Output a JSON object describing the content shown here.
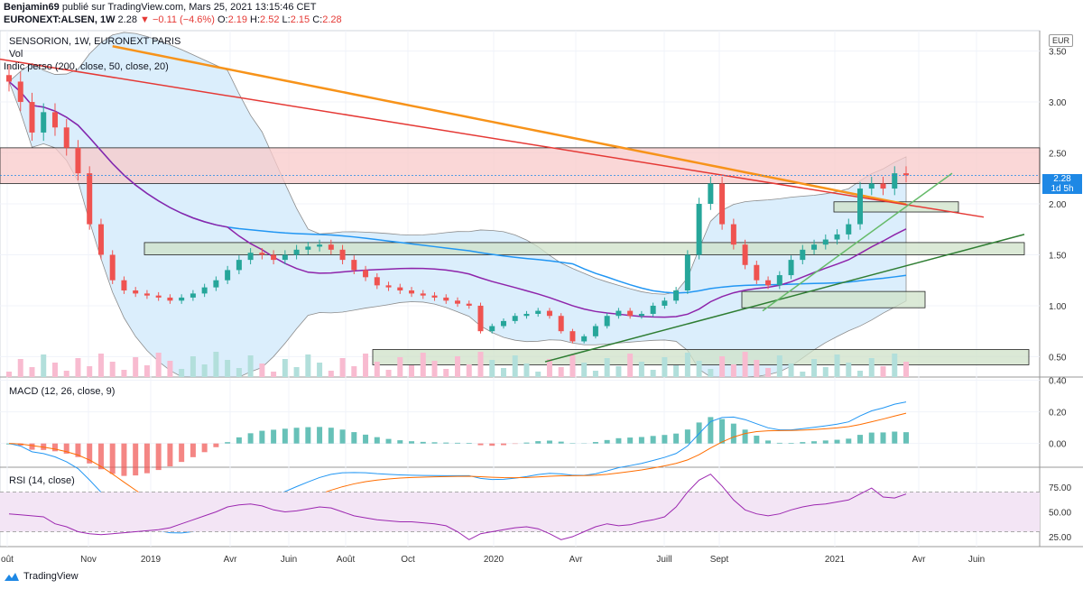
{
  "header": {
    "author": "Benjamin69",
    "published": "publié sur TradingView.com, Mars 25, 2021 13:15:46 CET",
    "symbol": "EURONEXT:ALSEN, 1W",
    "last": "2.28",
    "change": "−0.11 (−4.6%)",
    "o_label": "O:",
    "o": "2.19",
    "h_label": "H:",
    "h": "2.52",
    "l_label": "L:",
    "l": "2.15",
    "c_label": "C:",
    "c": "2.28"
  },
  "main_panel": {
    "title": "SENSORION, 1W, EURONEXT PARIS",
    "vol_label": "Vol",
    "indicator_label": "Indic perso (200, close, 50, close, 20)",
    "currency": "EUR",
    "price_tag": "2.28",
    "price_tag_sub": "1d 5h"
  },
  "macd_panel": {
    "title": "MACD (12, 26, close, 9)"
  },
  "rsi_panel": {
    "title": "RSI (14, close)"
  },
  "footer": {
    "brand": "TradingView"
  },
  "colors": {
    "up": "#26a69a",
    "down": "#ef5350",
    "ma200": "#f7931a",
    "ma50": "#2196f3",
    "ma20": "#8e24aa",
    "bb_fill": "#dbeefc",
    "resistance_zone": "#f8c9c9",
    "support_zone": "#cfe2c8",
    "trend_red": "#e53935",
    "trend_green": "#2e7d32",
    "rsi": "#9c27b0"
  },
  "chart_data": [
    {
      "type": "candlestick",
      "title": "SENSORION, 1W, EURONEXT PARIS",
      "x_ticks": [
        "oût",
        "Nov",
        "2019",
        "Avr",
        "Juin",
        "Août",
        "Oct",
        "2020",
        "Avr",
        "Juill",
        "Sept",
        "2021",
        "Avr",
        "Juin"
      ],
      "y_ticks": [
        "0.50",
        "1.00",
        "1.50",
        "2.00",
        "2.50",
        "3.00",
        "3.50"
      ],
      "ylim": [
        0.3,
        3.7
      ],
      "ohlc_path": [
        3.2,
        3.0,
        2.7,
        2.9,
        2.75,
        2.55,
        2.3,
        1.8,
        1.5,
        1.25,
        1.15,
        1.12,
        1.1,
        1.08,
        1.05,
        1.08,
        1.12,
        1.18,
        1.25,
        1.35,
        1.45,
        1.52,
        1.5,
        1.45,
        1.5,
        1.55,
        1.58,
        1.6,
        1.55,
        1.45,
        1.35,
        1.28,
        1.2,
        1.18,
        1.15,
        1.12,
        1.1,
        1.08,
        1.05,
        1.02,
        1.0,
        0.75,
        0.8,
        0.85,
        0.9,
        0.92,
        0.95,
        0.9,
        0.75,
        0.65,
        0.7,
        0.8,
        0.9,
        0.95,
        0.9,
        0.92,
        1.0,
        1.05,
        1.15,
        1.5,
        2.0,
        2.2,
        1.8,
        1.6,
        1.4,
        1.25,
        1.2,
        1.3,
        1.45,
        1.55,
        1.6,
        1.65,
        1.7,
        1.8,
        2.15,
        2.2,
        2.15,
        2.3,
        2.28
      ],
      "last_close": 2.28,
      "zones": [
        {
          "name": "resistance",
          "y": [
            2.2,
            2.55
          ]
        },
        {
          "name": "support-1",
          "y": [
            1.5,
            1.62
          ]
        },
        {
          "name": "support-2",
          "y": [
            0.42,
            0.57
          ]
        },
        {
          "name": "box-1",
          "y": [
            1.92,
            2.02
          ]
        },
        {
          "name": "box-2",
          "y": [
            0.98,
            1.14
          ]
        }
      ]
    },
    {
      "type": "bar",
      "title": "MACD (12, 26, close, 9)",
      "y_ticks": [
        "0.40",
        "0.20",
        "0.00"
      ],
      "ylim": [
        -0.15,
        0.42
      ]
    },
    {
      "type": "line",
      "title": "RSI (14, close)",
      "y_ticks": [
        "75.00",
        "50.00",
        "25.00"
      ],
      "ylim": [
        15,
        95
      ],
      "band": [
        30,
        70
      ],
      "values": [
        48,
        47,
        46,
        45,
        38,
        35,
        30,
        28,
        27,
        28,
        29,
        30,
        31,
        32,
        34,
        38,
        42,
        46,
        50,
        55,
        57,
        58,
        56,
        52,
        50,
        51,
        53,
        55,
        54,
        50,
        46,
        44,
        42,
        41,
        40,
        40,
        39,
        38,
        36,
        30,
        22,
        28,
        30,
        32,
        34,
        35,
        33,
        28,
        22,
        25,
        30,
        35,
        38,
        36,
        37,
        40,
        42,
        45,
        55,
        70,
        82,
        88,
        76,
        62,
        52,
        48,
        46,
        48,
        52,
        55,
        57,
        58,
        60,
        62,
        68,
        74,
        65,
        64,
        68
      ]
    }
  ]
}
